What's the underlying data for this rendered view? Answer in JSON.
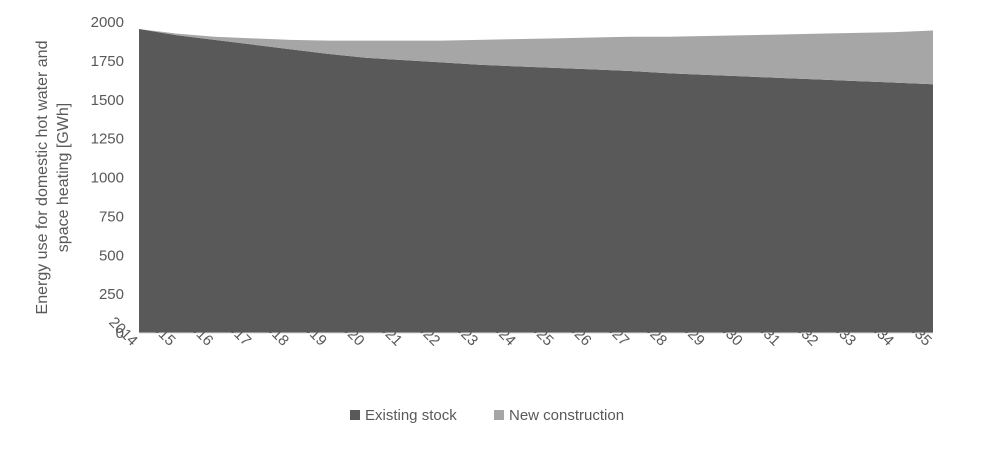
{
  "chart_data": {
    "type": "area",
    "stacked": true,
    "x": [
      "2014",
      "2015",
      "2016",
      "2017",
      "2018",
      "2019",
      "2020",
      "2021",
      "2022",
      "2023",
      "2024",
      "2025",
      "2026",
      "2027",
      "2028",
      "2029",
      "2030",
      "2031",
      "2032",
      "2033",
      "2034",
      "2035"
    ],
    "series": [
      {
        "name": "Existing stock",
        "color": "#595959",
        "values": [
          1955,
          1915,
          1885,
          1855,
          1825,
          1795,
          1770,
          1755,
          1740,
          1725,
          1715,
          1705,
          1695,
          1685,
          1670,
          1660,
          1650,
          1640,
          1630,
          1620,
          1610,
          1600
        ]
      },
      {
        "name": "New construction",
        "color": "#a6a6a6",
        "values": [
          0,
          10,
          20,
          40,
          60,
          85,
          110,
          125,
          140,
          160,
          175,
          190,
          205,
          220,
          235,
          250,
          265,
          280,
          295,
          310,
          325,
          345
        ]
      }
    ],
    "ylabel_lines": [
      "Energy use for domestic hot water and",
      "space heating [GWh]"
    ],
    "xlabel": "",
    "ylim": [
      0,
      2000
    ],
    "yticks": [
      "0",
      "250",
      "500",
      "750",
      "1000",
      "1250",
      "1500",
      "1750",
      "2000"
    ],
    "grid": false,
    "legend_position": "bottom"
  }
}
